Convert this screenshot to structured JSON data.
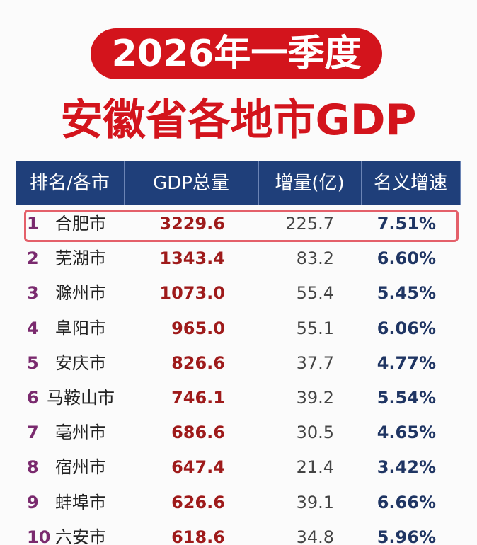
{
  "header": {
    "title": "2026年一季度",
    "subtitle": "安徽省各地市GDP"
  },
  "table": {
    "columns": [
      "排名/各市",
      "GDP总量",
      "增量(亿)",
      "名义增速"
    ],
    "rows": [
      [
        "1",
        "合肥市",
        "3229.6",
        "225.7",
        "7.51%"
      ],
      [
        "2",
        "芜湖市",
        "1343.4",
        "83.2",
        "6.60%"
      ],
      [
        "3",
        "滁州市",
        "1073.0",
        "55.4",
        "5.45%"
      ],
      [
        "4",
        "阜阳市",
        "965.0",
        "55.1",
        "6.06%"
      ],
      [
        "5",
        "安庆市",
        "826.6",
        "37.7",
        "4.77%"
      ],
      [
        "6",
        "马鞍山市",
        "746.1",
        "39.2",
        "5.54%"
      ],
      [
        "7",
        "亳州市",
        "686.6",
        "30.5",
        "4.65%"
      ],
      [
        "8",
        "宿州市",
        "647.4",
        "21.4",
        "3.42%"
      ],
      [
        "9",
        "蚌埠市",
        "626.6",
        "39.1",
        "6.66%"
      ],
      [
        "10",
        "六安市",
        "618.6",
        "34.8",
        "5.96%"
      ]
    ]
  }
}
